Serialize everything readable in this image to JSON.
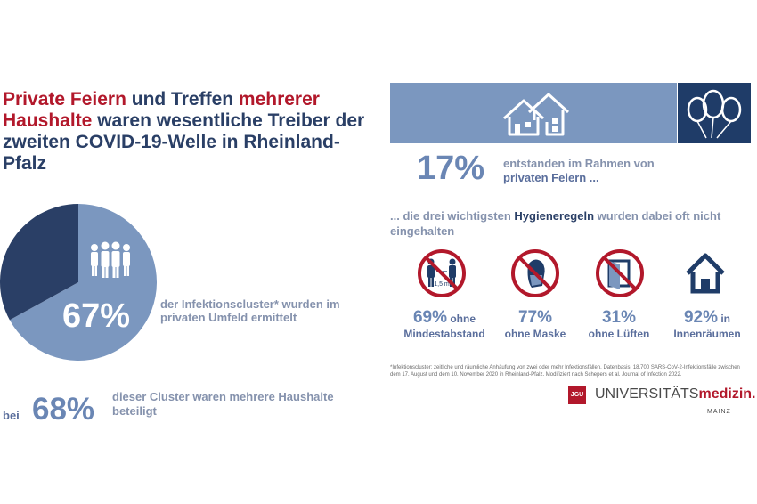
{
  "headline": {
    "part1_red": "Private Feiern",
    "part2": " und Treffen ",
    "part3_red": "mehrerer Haushalte",
    "part4": " waren wesentliche Treiber der zweiten COVID-19-Welle in Rheinland-Pfalz"
  },
  "left": {
    "pct_big": "67%",
    "cluster_text": "der Infektionscluster* wurden im privaten Umfeld ermittelt",
    "bei": "bei",
    "pct68": "68%",
    "cluster2_text": "dieser Cluster waren mehrere Haushalte beteiligt"
  },
  "right": {
    "pct17": "17%",
    "feiern_text_1": "entstanden im Rahmen von ",
    "feiern_text_2": "privaten Feiern ...",
    "hygiene_text_1": "... die drei wichtigsten ",
    "hygiene_text_2": "Hygieneregeln",
    "hygiene_text_3": " wurden dabei oft nicht eingehalten",
    "distance_label": "1,5 m",
    "stats": [
      {
        "num": "69%",
        "suffix": " ohne",
        "label": "Mindestabstand"
      },
      {
        "num": "77%",
        "suffix": "",
        "label": "ohne Maske"
      },
      {
        "num": "31%",
        "suffix": "",
        "label": "ohne Lüften"
      },
      {
        "num": "92%",
        "suffix": " in",
        "label": "Innenräumen"
      }
    ],
    "footnote": "*Infektionscluster: zeitliche und räumliche Anhäufung von zwei oder mehr Infektionsfällen. Datenbasis: 18.700 SARS-CoV-2-Infektionsfälle zwischen dem 17. August und dem 10. November 2020 in Rheinland-Pfalz. Modifiziert nach Schepers et al. Journal of Infection 2022."
  },
  "logo": {
    "box": "JGU",
    "text_1": "UNIVERSITÄTS",
    "text_2": "medizin.",
    "sub": "MAINZ"
  },
  "colors": {
    "navy": "#2a3f66",
    "red": "#b2182b",
    "blue_light": "#7b97bf",
    "blue_mid": "#6a86b4",
    "banner_dark": "#1f3c68"
  },
  "chart_data": {
    "type": "pie",
    "values": [
      67,
      33
    ],
    "labels": [
      "67%",
      ""
    ],
    "highlight_index": 0
  }
}
